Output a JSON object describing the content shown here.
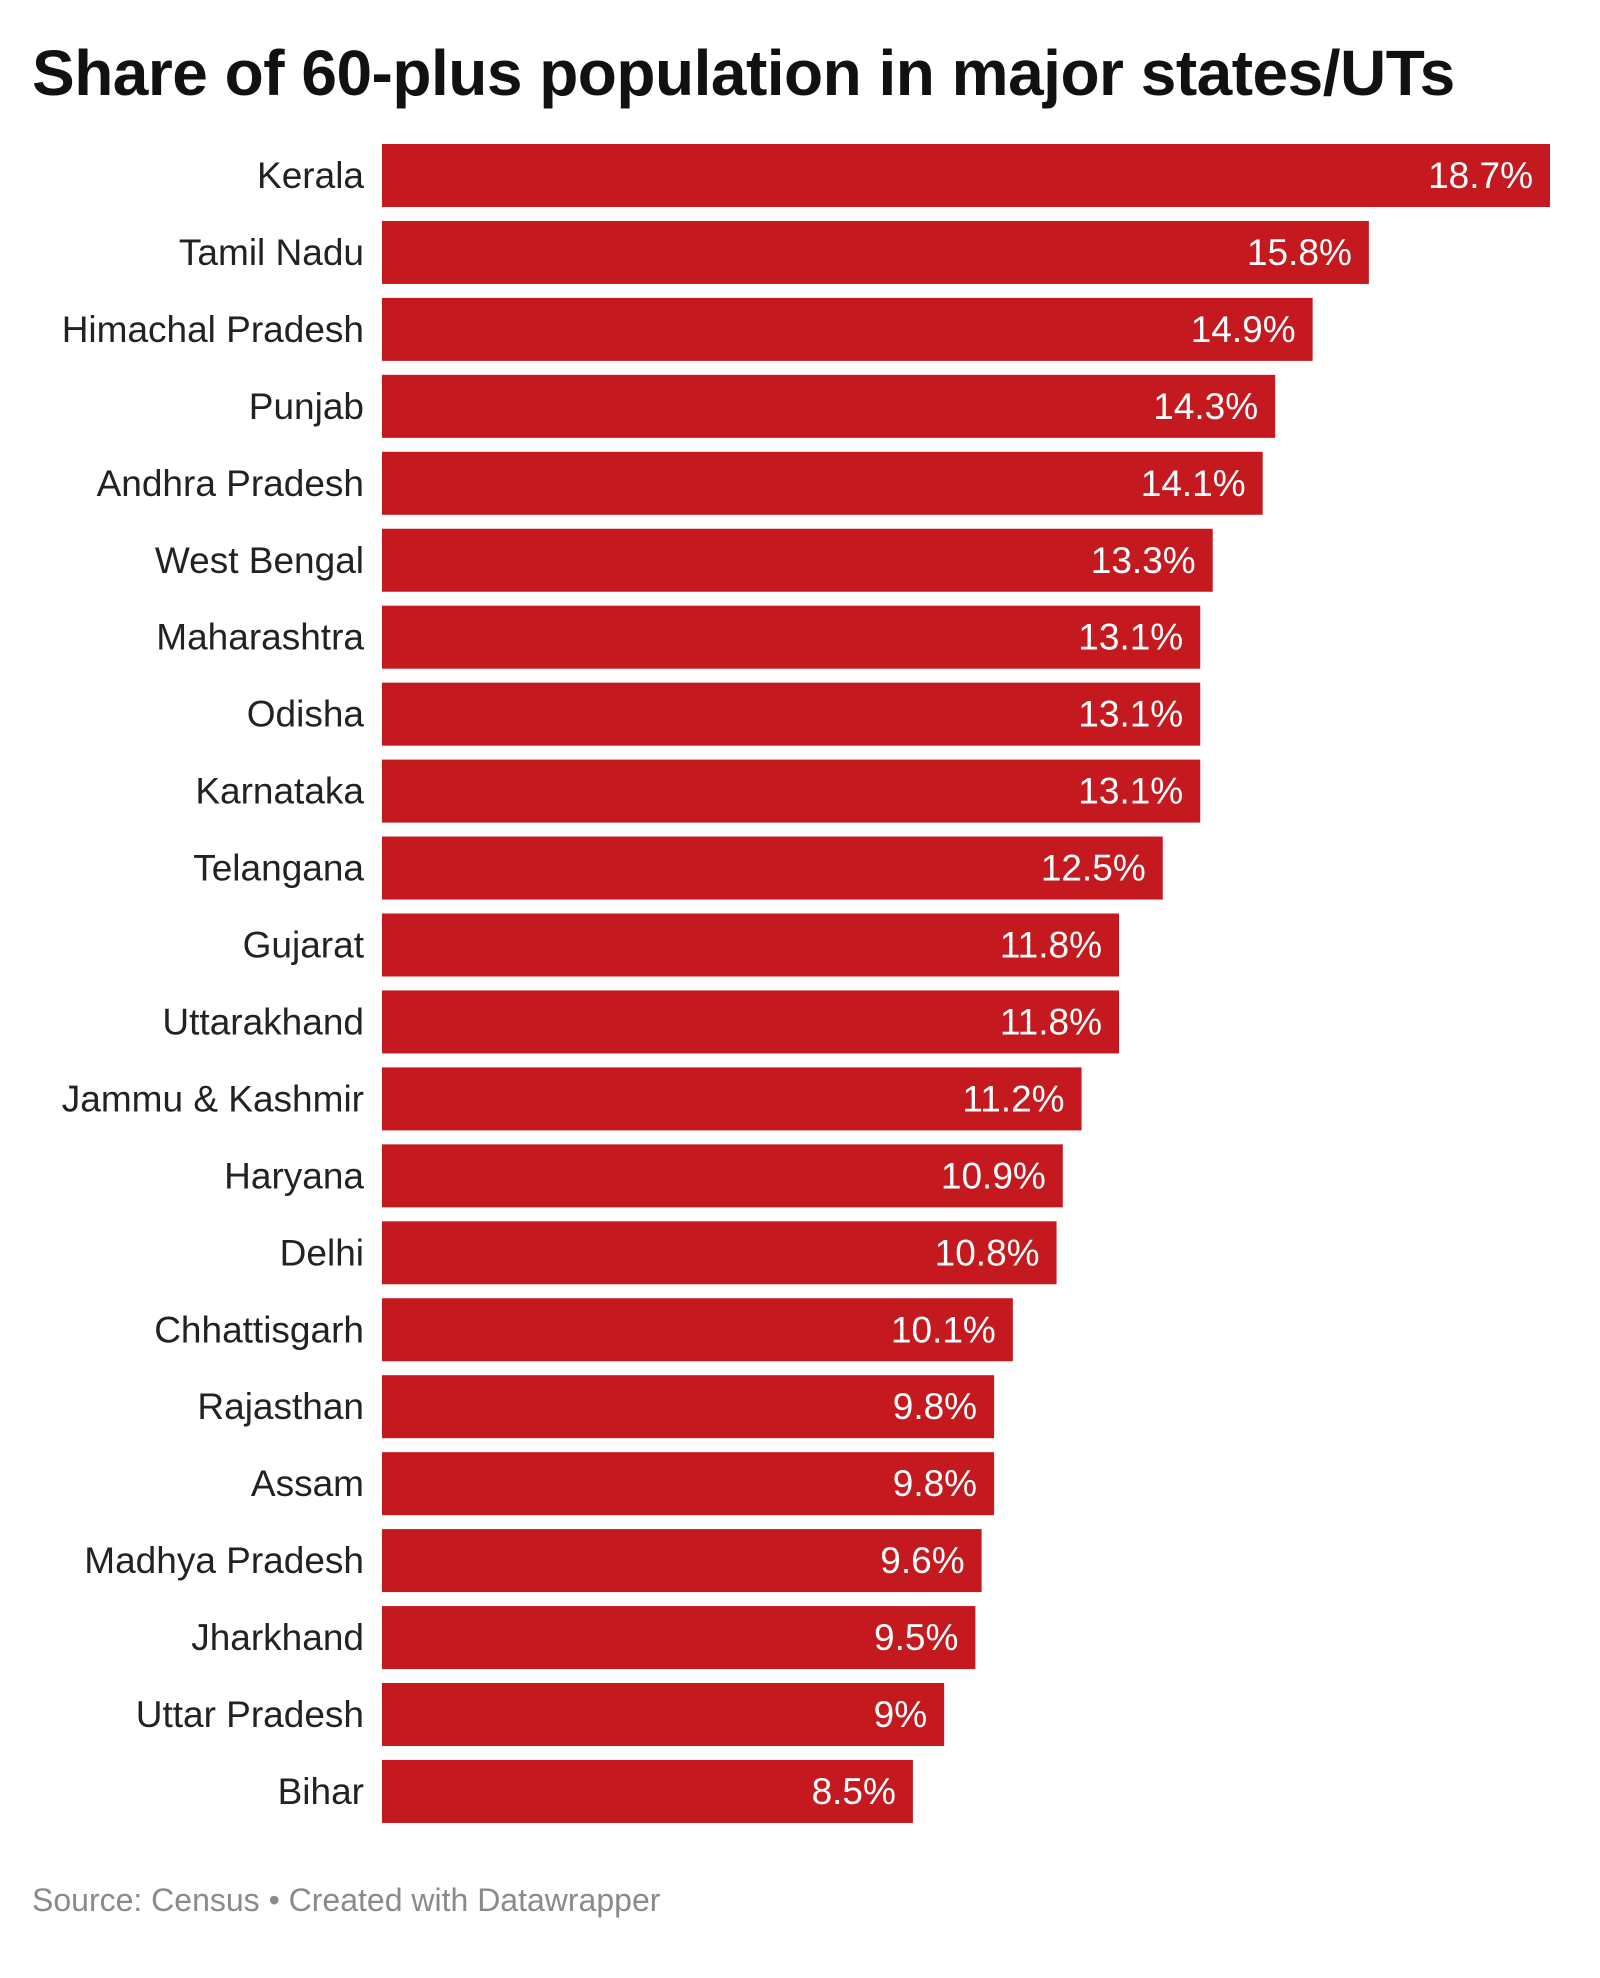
{
  "chart_data": {
    "type": "bar",
    "orientation": "horizontal",
    "title": "Share of 60-plus population in major states/UTs",
    "categories": [
      "Kerala",
      "Tamil Nadu",
      "Himachal Pradesh",
      "Punjab",
      "Andhra Pradesh",
      "West Bengal",
      "Maharashtra",
      "Odisha",
      "Karnataka",
      "Telangana",
      "Gujarat",
      "Uttarakhand",
      "Jammu & Kashmir",
      "Haryana",
      "Delhi",
      "Chhattisgarh",
      "Rajasthan",
      "Assam",
      "Madhya Pradesh",
      "Jharkhand",
      "Uttar Pradesh",
      "Bihar"
    ],
    "values": [
      18.7,
      15.8,
      14.9,
      14.3,
      14.1,
      13.3,
      13.1,
      13.1,
      13.1,
      12.5,
      11.8,
      11.8,
      11.2,
      10.9,
      10.8,
      10.1,
      9.8,
      9.8,
      9.6,
      9.5,
      9,
      8.5
    ],
    "value_labels": [
      "18.7%",
      "15.8%",
      "14.9%",
      "14.3%",
      "14.1%",
      "13.3%",
      "13.1%",
      "13.1%",
      "13.1%",
      "12.5%",
      "11.8%",
      "11.8%",
      "11.2%",
      "10.9%",
      "10.8%",
      "10.1%",
      "9.8%",
      "9.8%",
      "9.6%",
      "9.5%",
      "9%",
      "8.5%"
    ],
    "unit": "%",
    "xlim": [
      0,
      18.7
    ],
    "grid": false,
    "bar_color": "#c41a1f"
  },
  "footer": {
    "text": "Source: Census • Created with Datawrapper"
  }
}
